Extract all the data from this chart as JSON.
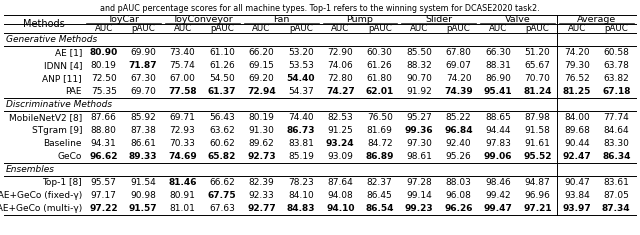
{
  "caption": "and pAUC percentage scores for all machine types. Top-1 refers to the winning system for DCASE2020 task2.",
  "col_groups": [
    "ToyCar",
    "ToyConveyor",
    "Fan",
    "Pump",
    "Slider",
    "Valve",
    "Average"
  ],
  "sections": [
    {
      "section_label": "Generative Methods",
      "rows": [
        {
          "label": "AE [1]",
          "values": [
            "80.90",
            "69.90",
            "73.40",
            "61.10",
            "66.20",
            "53.20",
            "72.90",
            "60.30",
            "85.50",
            "67.80",
            "66.30",
            "51.20",
            "74.20",
            "60.58"
          ],
          "bold": [
            true,
            false,
            false,
            false,
            false,
            false,
            false,
            false,
            false,
            false,
            false,
            false,
            false,
            false
          ]
        },
        {
          "label": "IDNN [4]",
          "values": [
            "80.19",
            "71.87",
            "75.74",
            "61.26",
            "69.15",
            "53.53",
            "74.06",
            "61.26",
            "88.32",
            "69.07",
            "88.31",
            "65.67",
            "79.30",
            "63.78"
          ],
          "bold": [
            false,
            true,
            false,
            false,
            false,
            false,
            false,
            false,
            false,
            false,
            false,
            false,
            false,
            false
          ]
        },
        {
          "label": "ANP [11]",
          "values": [
            "72.50",
            "67.30",
            "67.00",
            "54.50",
            "69.20",
            "54.40",
            "72.80",
            "61.80",
            "90.70",
            "74.20",
            "86.90",
            "70.70",
            "76.52",
            "63.82"
          ],
          "bold": [
            false,
            false,
            false,
            false,
            false,
            true,
            false,
            false,
            false,
            false,
            false,
            false,
            false,
            false
          ]
        },
        {
          "label": "PAE",
          "values": [
            "75.35",
            "69.70",
            "77.58",
            "61.37",
            "72.94",
            "54.37",
            "74.27",
            "62.01",
            "91.92",
            "74.39",
            "95.41",
            "81.24",
            "81.25",
            "67.18"
          ],
          "bold": [
            false,
            false,
            true,
            true,
            true,
            false,
            true,
            true,
            false,
            true,
            true,
            true,
            true,
            true
          ]
        }
      ]
    },
    {
      "section_label": "Discriminative Methods",
      "rows": [
        {
          "label": "MobileNetV2 [8]",
          "values": [
            "87.66",
            "85.92",
            "69.71",
            "56.43",
            "80.19",
            "74.40",
            "82.53",
            "76.50",
            "95.27",
            "85.22",
            "88.65",
            "87.98",
            "84.00",
            "77.74"
          ],
          "bold": [
            false,
            false,
            false,
            false,
            false,
            false,
            false,
            false,
            false,
            false,
            false,
            false,
            false,
            false
          ]
        },
        {
          "label": "STgram [9]",
          "values": [
            "88.80",
            "87.38",
            "72.93",
            "63.62",
            "91.30",
            "86.73",
            "91.25",
            "81.69",
            "99.36",
            "96.84",
            "94.44",
            "91.58",
            "89.68",
            "84.64"
          ],
          "bold": [
            false,
            false,
            false,
            false,
            false,
            true,
            false,
            false,
            true,
            true,
            false,
            false,
            false,
            false
          ]
        },
        {
          "label": "Baseline",
          "values": [
            "94.31",
            "86.61",
            "70.33",
            "60.62",
            "89.62",
            "83.81",
            "93.24",
            "84.72",
            "97.30",
            "92.40",
            "97.83",
            "91.61",
            "90.44",
            "83.30"
          ],
          "bold": [
            false,
            false,
            false,
            false,
            false,
            false,
            true,
            false,
            false,
            false,
            false,
            false,
            false,
            false
          ]
        },
        {
          "label": "GeCo",
          "values": [
            "96.62",
            "89.33",
            "74.69",
            "65.82",
            "92.73",
            "85.19",
            "93.09",
            "86.89",
            "98.61",
            "95.26",
            "99.06",
            "95.52",
            "92.47",
            "86.34"
          ],
          "bold": [
            true,
            true,
            true,
            true,
            true,
            false,
            false,
            true,
            false,
            false,
            true,
            true,
            true,
            true
          ]
        }
      ]
    },
    {
      "section_label": "Ensembles",
      "rows": [
        {
          "label": "Top-1 [8]",
          "values": [
            "95.57",
            "91.54",
            "81.46",
            "66.62",
            "82.39",
            "78.23",
            "87.64",
            "82.37",
            "97.28",
            "88.03",
            "98.46",
            "94.87",
            "90.47",
            "83.61"
          ],
          "bold": [
            false,
            false,
            true,
            false,
            false,
            false,
            false,
            false,
            false,
            false,
            false,
            false,
            false,
            false
          ]
        },
        {
          "label": "PAE+GeCo (fixed-γ)",
          "values": [
            "97.17",
            "90.98",
            "80.91",
            "67.75",
            "92.33",
            "84.10",
            "94.08",
            "86.45",
            "99.14",
            "96.08",
            "99.42",
            "96.96",
            "93.84",
            "87.05"
          ],
          "bold": [
            false,
            false,
            false,
            true,
            false,
            false,
            false,
            false,
            false,
            false,
            false,
            false,
            false,
            false
          ]
        },
        {
          "label": "PAE+GeCo (multi-γ)",
          "values": [
            "97.22",
            "91.57",
            "81.01",
            "67.63",
            "92.77",
            "84.83",
            "94.10",
            "86.54",
            "99.23",
            "96.26",
            "99.47",
            "97.21",
            "93.97",
            "87.34"
          ],
          "bold": [
            true,
            true,
            false,
            false,
            true,
            true,
            true,
            true,
            true,
            true,
            true,
            true,
            true,
            true
          ]
        }
      ]
    }
  ]
}
